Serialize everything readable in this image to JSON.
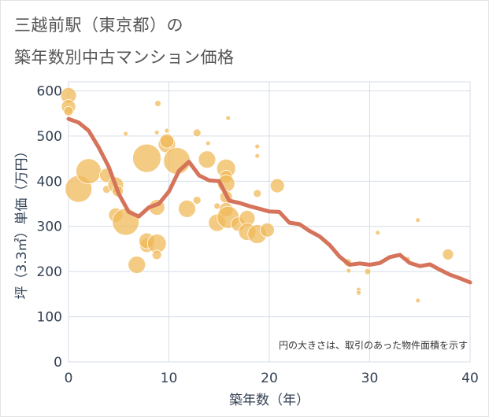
{
  "title_line1": "三越前駅（東京都）の",
  "title_line2": "築年数別中古マンション価格",
  "chart_data": {
    "type": "scatter",
    "xlabel": "築年数（年）",
    "ylabel": "坪（3.3㎡）単価（万円）",
    "xlim": [
      0,
      40
    ],
    "ylim": [
      0,
      620
    ],
    "xticks": [
      0,
      10,
      20,
      30,
      40
    ],
    "yticks": [
      0,
      100,
      200,
      300,
      400,
      500,
      600
    ],
    "annotation": "円の大きさは、取引のあった物件面積を示す",
    "colors": {
      "bubble": "#f0b95a",
      "line": "#d5735b",
      "grid": "#d6dde8",
      "axis_text": "#334155"
    },
    "trend_line": [
      [
        0,
        538
      ],
      [
        1,
        530
      ],
      [
        2,
        512
      ],
      [
        3,
        475
      ],
      [
        4,
        432
      ],
      [
        5,
        372
      ],
      [
        6,
        332
      ],
      [
        7,
        322
      ],
      [
        8,
        342
      ],
      [
        9,
        350
      ],
      [
        10,
        377
      ],
      [
        11,
        423
      ],
      [
        12,
        443
      ],
      [
        13,
        413
      ],
      [
        14,
        402
      ],
      [
        15,
        400
      ],
      [
        16,
        357
      ],
      [
        17,
        352
      ],
      [
        18,
        345
      ],
      [
        19,
        339
      ],
      [
        20,
        333
      ],
      [
        21,
        332
      ],
      [
        22,
        308
      ],
      [
        23,
        305
      ],
      [
        24,
        290
      ],
      [
        25,
        278
      ],
      [
        26,
        259
      ],
      [
        27,
        233
      ],
      [
        28,
        215
      ],
      [
        29,
        218
      ],
      [
        30,
        215
      ],
      [
        31,
        219
      ],
      [
        32,
        232
      ],
      [
        33,
        237
      ],
      [
        34,
        219
      ],
      [
        35,
        212
      ],
      [
        36,
        216
      ],
      [
        37,
        204
      ],
      [
        38,
        193
      ],
      [
        39,
        185
      ],
      [
        40,
        176
      ]
    ],
    "bubbles": [
      {
        "x": 0,
        "y": 590,
        "size": 10
      },
      {
        "x": 0,
        "y": 565,
        "size": 9
      },
      {
        "x": 0,
        "y": 555,
        "size": 6
      },
      {
        "x": 1,
        "y": 383,
        "size": 17
      },
      {
        "x": 2,
        "y": 422,
        "size": 16
      },
      {
        "x": 3.8,
        "y": 413,
        "size": 9
      },
      {
        "x": 3.8,
        "y": 382,
        "size": 5
      },
      {
        "x": 4.7,
        "y": 392,
        "size": 10
      },
      {
        "x": 4.9,
        "y": 378,
        "size": 7
      },
      {
        "x": 4.7,
        "y": 325,
        "size": 9
      },
      {
        "x": 5.7,
        "y": 310,
        "size": 17
      },
      {
        "x": 5.7,
        "y": 505,
        "size": 3
      },
      {
        "x": 6.8,
        "y": 215,
        "size": 11
      },
      {
        "x": 7.8,
        "y": 451,
        "size": 18
      },
      {
        "x": 7.8,
        "y": 258,
        "size": 9
      },
      {
        "x": 7.8,
        "y": 268,
        "size": 10
      },
      {
        "x": 8.8,
        "y": 262,
        "size": 12
      },
      {
        "x": 8.8,
        "y": 342,
        "size": 10
      },
      {
        "x": 8.8,
        "y": 237,
        "size": 6
      },
      {
        "x": 8.9,
        "y": 572,
        "size": 4
      },
      {
        "x": 8.8,
        "y": 508,
        "size": 3
      },
      {
        "x": 9.8,
        "y": 482,
        "size": 11
      },
      {
        "x": 9.8,
        "y": 512,
        "size": 3
      },
      {
        "x": 9.8,
        "y": 489,
        "size": 9
      },
      {
        "x": 10.8,
        "y": 445,
        "size": 17
      },
      {
        "x": 11.8,
        "y": 339,
        "size": 11
      },
      {
        "x": 12.8,
        "y": 507,
        "size": 5
      },
      {
        "x": 12.8,
        "y": 358,
        "size": 5
      },
      {
        "x": 13.8,
        "y": 448,
        "size": 11
      },
      {
        "x": 13.9,
        "y": 484,
        "size": 3
      },
      {
        "x": 14.8,
        "y": 308,
        "size": 11
      },
      {
        "x": 14.8,
        "y": 345,
        "size": 4
      },
      {
        "x": 15.7,
        "y": 428,
        "size": 12
      },
      {
        "x": 15.7,
        "y": 410,
        "size": 8
      },
      {
        "x": 15.7,
        "y": 395,
        "size": 11
      },
      {
        "x": 15.7,
        "y": 365,
        "size": 8
      },
      {
        "x": 15.7,
        "y": 337,
        "size": 9
      },
      {
        "x": 15.9,
        "y": 320,
        "size": 14
      },
      {
        "x": 15.9,
        "y": 540,
        "size": 3
      },
      {
        "x": 16.9,
        "y": 305,
        "size": 9
      },
      {
        "x": 17.8,
        "y": 318,
        "size": 10
      },
      {
        "x": 17.8,
        "y": 288,
        "size": 11
      },
      {
        "x": 18.8,
        "y": 283,
        "size": 12
      },
      {
        "x": 18.8,
        "y": 373,
        "size": 5
      },
      {
        "x": 18.8,
        "y": 477,
        "size": 3
      },
      {
        "x": 18.8,
        "y": 456,
        "size": 3
      },
      {
        "x": 19.8,
        "y": 292,
        "size": 9
      },
      {
        "x": 20.8,
        "y": 390,
        "size": 9
      },
      {
        "x": 27.8,
        "y": 220,
        "size": 5
      },
      {
        "x": 27.9,
        "y": 202,
        "size": 3
      },
      {
        "x": 28.9,
        "y": 160,
        "size": 3
      },
      {
        "x": 28.9,
        "y": 153,
        "size": 3
      },
      {
        "x": 29.8,
        "y": 200,
        "size": 4
      },
      {
        "x": 30.8,
        "y": 286,
        "size": 3
      },
      {
        "x": 33.8,
        "y": 228,
        "size": 3
      },
      {
        "x": 34.8,
        "y": 314,
        "size": 3
      },
      {
        "x": 34.8,
        "y": 136,
        "size": 3
      },
      {
        "x": 37.8,
        "y": 238,
        "size": 7
      }
    ]
  }
}
